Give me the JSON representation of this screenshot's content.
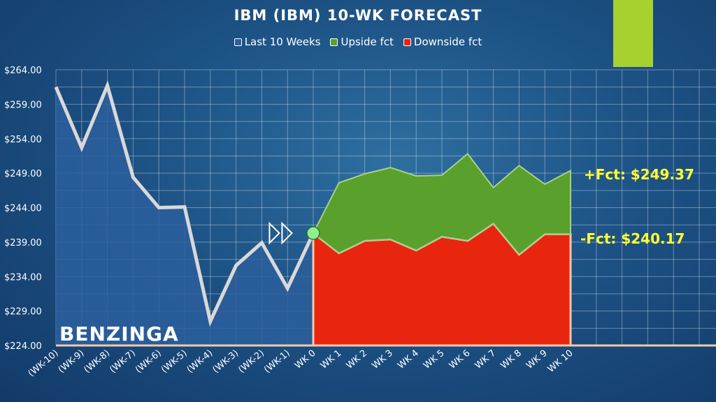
{
  "colors": {
    "accent_bar": "#a6d12f",
    "history_line": "#d9d9d9",
    "history_fill": "#2b5f9e",
    "upside_fill": "#5aa02c",
    "downside_fill": "#e8260f",
    "forecast_label": "#ffff33",
    "start_marker": "#90ee90"
  },
  "legend": {
    "history": "Last 10 Weeks",
    "upside": "Upside fct",
    "downside": "Downside fct"
  },
  "brand": "BENZINGA",
  "upside_label": "+Fct: $249.37",
  "downside_label": "-Fct: $240.17",
  "icons": {
    "start_marker": "double-chevron-right-icon"
  },
  "chart_data": {
    "type": "area",
    "title": "IBM (IBM) 10-WK FORECAST",
    "xlabel": "",
    "ylabel": "",
    "categories": [
      "(WK-10)",
      "(WK-9)",
      "(WK-8)",
      "(WK-7)",
      "(WK-6)",
      "(WK-5)",
      "(WK-4)",
      "(WK-3)",
      "(WK-2)",
      "(WK-1)",
      "WK 0",
      "WK 1",
      "WK 2",
      "WK 3",
      "WK 4",
      "WK 5",
      "WK 6",
      "WK 7",
      "WK 8",
      "WK 9",
      "WK 10"
    ],
    "yticks": [
      "$264.00",
      "$259.00",
      "$254.00",
      "$249.00",
      "$244.00",
      "$239.00",
      "$234.00",
      "$229.00",
      "$224.00"
    ],
    "ylim": [
      224,
      264
    ],
    "grid": true,
    "legend_position": "top-center",
    "series": [
      {
        "name": "Last 10 Weeks",
        "type": "line+area",
        "x": [
          0,
          1,
          2,
          3,
          4,
          5,
          6,
          7,
          8,
          9,
          10
        ],
        "values": [
          261.5,
          252.7,
          261.7,
          248.4,
          244.0,
          244.1,
          227.5,
          235.6,
          238.9,
          232.3,
          240.3
        ]
      },
      {
        "name": "Upside fct",
        "type": "area",
        "x": [
          10,
          11,
          12,
          13,
          14,
          15,
          16,
          17,
          18,
          19,
          20
        ],
        "values": [
          240.3,
          247.6,
          248.9,
          249.8,
          248.6,
          248.7,
          251.8,
          246.9,
          250.1,
          247.4,
          249.37
        ]
      },
      {
        "name": "Downside fct",
        "type": "area",
        "x": [
          10,
          11,
          12,
          13,
          14,
          15,
          16,
          17,
          18,
          19,
          20
        ],
        "values": [
          240.3,
          237.4,
          239.2,
          239.4,
          237.8,
          239.8,
          239.2,
          241.7,
          237.2,
          240.17,
          240.17
        ]
      }
    ]
  }
}
